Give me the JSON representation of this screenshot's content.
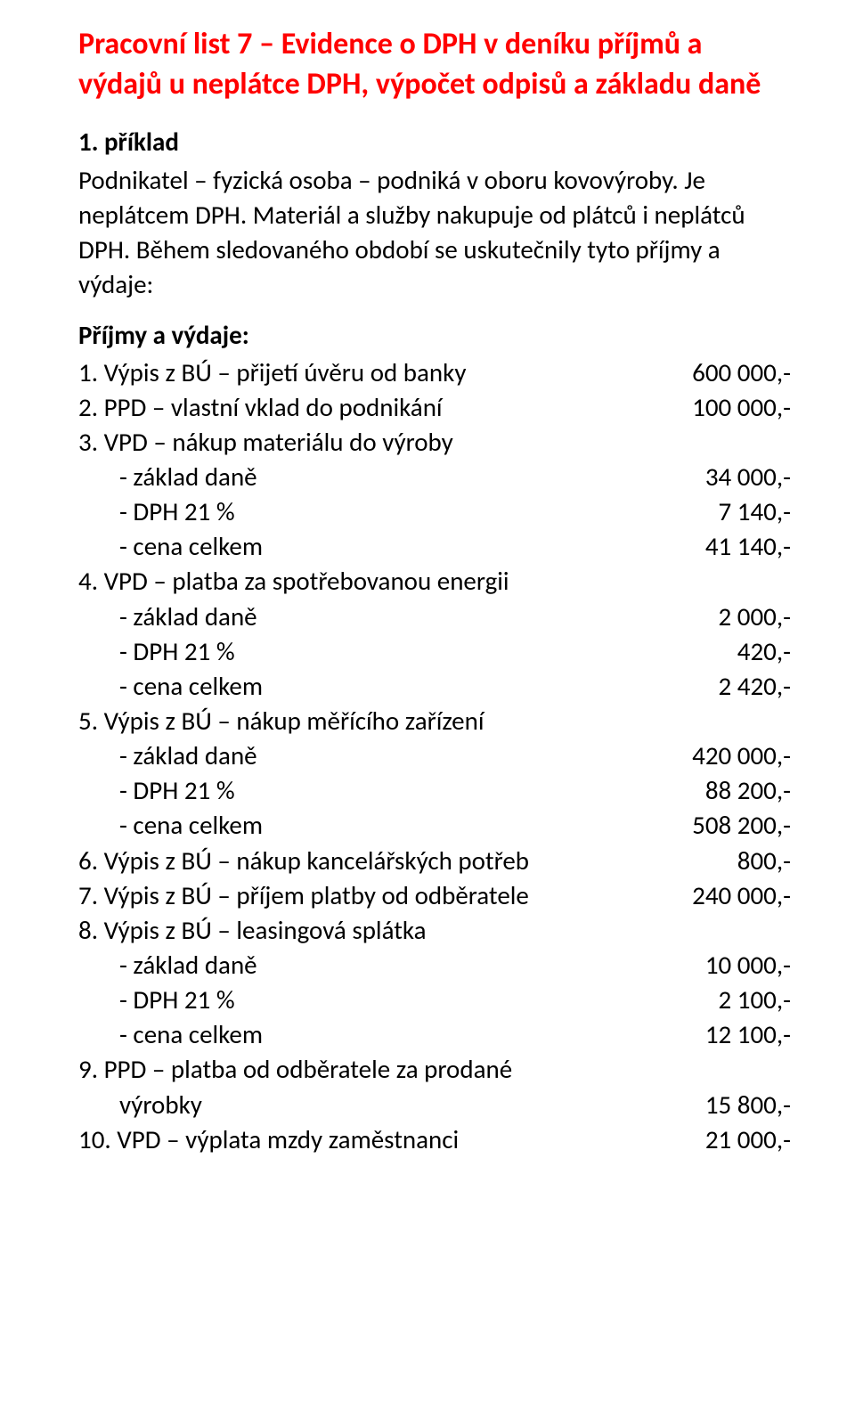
{
  "colors": {
    "title": "#ff0000",
    "text": "#000000",
    "background": "#ffffff"
  },
  "title": "Pracovní list 7 – Evidence o DPH v deníku příjmů a výdajů u neplátce DPH, výpočet odpisů a základu daně",
  "example_heading": "1. příklad",
  "intro": "Podnikatel – fyzická osoba – podniká v oboru kovovýroby. Je neplátcem DPH. Materiál a služby nakupuje od plátců i neplátců DPH. Během sledovaného období se uskutečnily tyto příjmy a výdaje:",
  "section_label": "Příjmy a výdaje:",
  "items": [
    {
      "label": "1. Výpis z BÚ – přijetí úvěru od banky",
      "amount": "600 000,-"
    },
    {
      "label": "2. PPD – vlastní vklad do podnikání",
      "amount": "100 000,-"
    },
    {
      "label": "3. VPD – nákup materiálu do výroby",
      "amount": ""
    },
    {
      "label": "- základ daně",
      "amount": "34 000,-",
      "sub": true
    },
    {
      "label": "- DPH 21 %",
      "amount": "7 140,-",
      "sub": true
    },
    {
      "label": "- cena celkem",
      "amount": "41 140,-",
      "sub": true
    },
    {
      "label": "4. VPD – platba za spotřebovanou energii",
      "amount": ""
    },
    {
      "label": "- základ daně",
      "amount": "2 000,-",
      "sub": true
    },
    {
      "label": "- DPH 21 %",
      "amount": "420,-",
      "sub": true
    },
    {
      "label": "- cena celkem",
      "amount": "2 420,-",
      "sub": true
    },
    {
      "label": "5. Výpis z BÚ – nákup měřícího zařízení",
      "amount": ""
    },
    {
      "label": "- základ daně",
      "amount": "420 000,-",
      "sub": true
    },
    {
      "label": "- DPH 21 %",
      "amount": "88 200,-",
      "sub": true
    },
    {
      "label": "- cena celkem",
      "amount": "508 200,-",
      "sub": true
    },
    {
      "label": "6. Výpis z BÚ – nákup kancelářských potřeb",
      "amount": "800,-"
    },
    {
      "label": "7. Výpis z BÚ – příjem platby od odběratele",
      "amount": "240 000,-"
    },
    {
      "label": "8. Výpis z BÚ – leasingová splátka",
      "amount": ""
    },
    {
      "label": "- základ daně",
      "amount": "10 000,-",
      "sub": true
    },
    {
      "label": "- DPH 21 %",
      "amount": "2 100,-",
      "sub": true
    },
    {
      "label": "- cena celkem",
      "amount": "12 100,-",
      "sub": true
    },
    {
      "label": "9. PPD – platba od odběratele za prodané",
      "amount": ""
    },
    {
      "label": "výrobky",
      "amount": "15 800,-",
      "sub": true
    },
    {
      "label": "10. VPD – výplata mzdy zaměstnanci",
      "amount": "21 000,-"
    }
  ]
}
